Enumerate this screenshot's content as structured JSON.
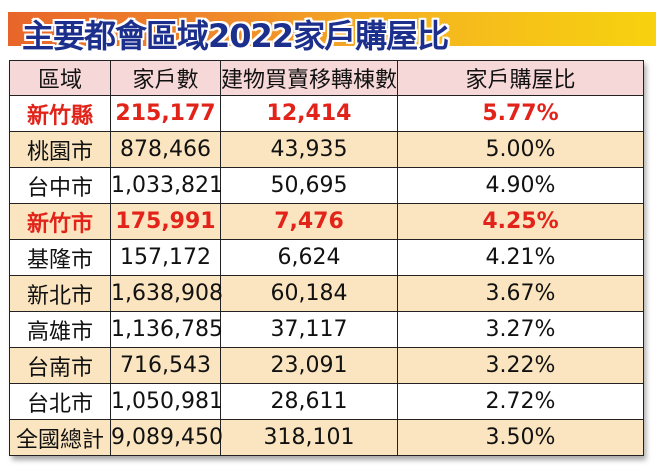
{
  "title": "主要都會區域2022家戶購屋比",
  "table": {
    "headers": [
      "區域",
      "家戶數",
      "建物買賣移轉棟數",
      "家戶購屋比"
    ],
    "rows": [
      {
        "region": "新竹縣",
        "households": "215,177",
        "transfers": "12,414",
        "ratio": "5.77%",
        "highlight": true
      },
      {
        "region": "桃園市",
        "households": "878,466",
        "transfers": "43,935",
        "ratio": "5.00%"
      },
      {
        "region": "台中市",
        "households": "1,033,821",
        "transfers": "50,695",
        "ratio": "4.90%"
      },
      {
        "region": "新竹市",
        "households": "175,991",
        "transfers": "7,476",
        "ratio": "4.25%",
        "highlight": true
      },
      {
        "region": "基隆市",
        "households": "157,172",
        "transfers": "6,624",
        "ratio": "4.21%"
      },
      {
        "region": "新北市",
        "households": "1,638,908",
        "transfers": "60,184",
        "ratio": "3.67%"
      },
      {
        "region": "高雄市",
        "households": "1,136,785",
        "transfers": "37,117",
        "ratio": "3.27%"
      },
      {
        "region": "台南市",
        "households": "716,543",
        "transfers": "23,091",
        "ratio": "3.22%"
      },
      {
        "region": "台北市",
        "households": "1,050,981",
        "transfers": "28,611",
        "ratio": "2.72%"
      },
      {
        "region": "全國總計",
        "households": "9,089,450",
        "transfers": "318,101",
        "ratio": "3.50%"
      }
    ]
  },
  "colors": {
    "title_text": "#1d2f8c",
    "title_gradient_start": "#e8652a",
    "title_gradient_end": "#f7d20f",
    "header_bg": "#f7d8d8",
    "alt_row_bg": "#fbe5c0",
    "highlight_text": "#e2231a"
  }
}
